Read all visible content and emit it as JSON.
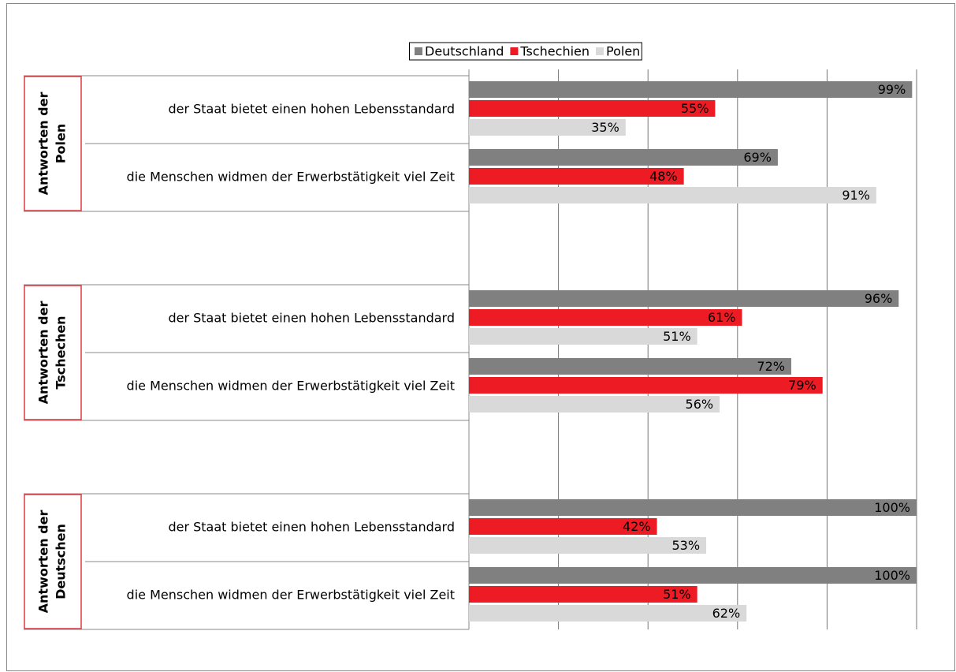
{
  "chart_data": {
    "type": "bar",
    "orientation": "horizontal",
    "series": [
      {
        "name": "Deutschland",
        "color": "#808080",
        "label_color": "#ffffff",
        "values": [
          [
            99,
            69
          ],
          [
            96,
            72
          ],
          [
            100,
            100
          ]
        ],
        "value_labels": [
          [
            "99%",
            "69%"
          ],
          [
            "96%",
            "72%"
          ],
          [
            "100%",
            "100%"
          ]
        ]
      },
      {
        "name": "Tschechien",
        "color": "#ed1c24",
        "label_color": "#ffffff",
        "values": [
          [
            55,
            48
          ],
          [
            61,
            79
          ],
          [
            42,
            51
          ]
        ],
        "value_labels": [
          [
            "55%",
            "48%"
          ],
          [
            "61%",
            "79%"
          ],
          [
            "42%",
            "51%"
          ]
        ]
      },
      {
        "name": "Polen",
        "color": "#d9d9d9",
        "label_color": "#000000",
        "values": [
          [
            35,
            91
          ],
          [
            51,
            56
          ],
          [
            53,
            62
          ]
        ],
        "value_labels": [
          [
            "35%",
            "91%"
          ],
          [
            "51%",
            "56%"
          ],
          [
            "53%",
            "62%"
          ]
        ]
      }
    ],
    "group_labels": [
      [
        "Antworten der",
        "Polen"
      ],
      [
        "Antworten der",
        "Tschechen"
      ],
      [
        "Antworten der",
        "Deutschen"
      ]
    ],
    "categories": [
      [
        "der Staat bietet einen hohen Lebensstandard",
        "die Menschen widmen der Erwerbstätigkeit viel Zeit"
      ],
      [
        "der Staat bietet einen hohen Lebensstandard",
        "die Menschen widmen der Erwerbstätigkeit viel Zeit"
      ],
      [
        "der Staat bietet einen hohen Lebensstandard",
        "die Menschen widmen der Erwerbstätigkeit viel Zeit"
      ]
    ],
    "xlim": [
      0,
      100
    ],
    "xticks": [
      0,
      20,
      40,
      60,
      80,
      100
    ],
    "grid": true,
    "legend": "top"
  }
}
